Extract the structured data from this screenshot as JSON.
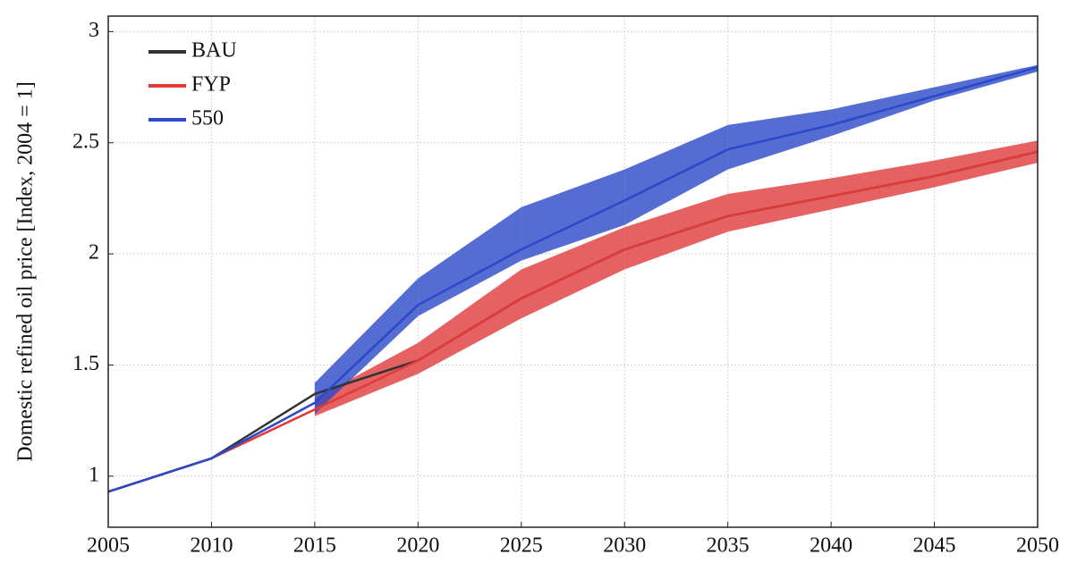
{
  "chart_data": {
    "type": "line",
    "ylabel": "Domestic refined oil price [Index, 2004 = 1]",
    "x": [
      2005,
      2010,
      2015,
      2020,
      2025,
      2030,
      2035,
      2040,
      2045,
      2050
    ],
    "xlim": [
      2005,
      2050
    ],
    "xticks": [
      2005,
      2010,
      2015,
      2020,
      2025,
      2030,
      2035,
      2040,
      2045,
      2050
    ],
    "ylim": [
      0.77,
      3.07
    ],
    "yticks": [
      1,
      1.5,
      2,
      2.5,
      3
    ],
    "grid": true,
    "legend": "top-left",
    "series": [
      {
        "name": "BAU",
        "color": "#333333",
        "values": [
          0.93,
          1.08,
          1.37,
          1.52,
          1.8,
          2.02,
          2.17,
          2.26,
          2.35,
          2.46
        ]
      },
      {
        "name": "FYP",
        "color": "#e03a3a",
        "values": [
          0.93,
          1.08,
          1.3,
          1.52,
          1.8,
          2.02,
          2.17,
          2.26,
          2.35,
          2.46
        ],
        "lower": [
          null,
          null,
          1.27,
          1.46,
          1.71,
          1.93,
          2.1,
          2.2,
          2.3,
          2.41
        ],
        "upper": [
          null,
          null,
          1.35,
          1.6,
          1.93,
          2.12,
          2.27,
          2.34,
          2.42,
          2.51
        ]
      },
      {
        "name": "550",
        "color": "#2a48c8",
        "values": [
          0.93,
          1.08,
          1.33,
          1.77,
          2.02,
          2.24,
          2.47,
          2.58,
          2.71,
          2.84
        ],
        "lower": [
          null,
          null,
          1.28,
          1.72,
          1.97,
          2.13,
          2.38,
          2.53,
          2.69,
          2.82
        ],
        "upper": [
          null,
          null,
          1.42,
          1.89,
          2.21,
          2.38,
          2.58,
          2.65,
          2.75,
          2.85
        ]
      }
    ]
  }
}
